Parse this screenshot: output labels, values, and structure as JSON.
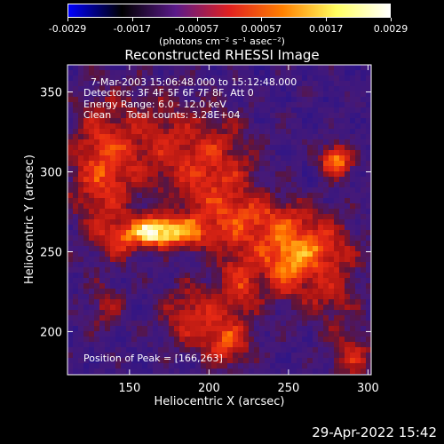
{
  "chart_data": {
    "type": "heatmap",
    "title": "Reconstructed RHESSI Image",
    "xlabel": "Heliocentric X (arcsec)",
    "ylabel": "Heliocentric Y (arcsec)",
    "xlim": [
      111,
      302
    ],
    "ylim": [
      173,
      367
    ],
    "x_ticks": [
      "150",
      "200",
      "250",
      "300"
    ],
    "x_tick_values": [
      150,
      200,
      250,
      300
    ],
    "y_ticks": [
      "200",
      "250",
      "300",
      "350"
    ],
    "y_tick_values": [
      200,
      250,
      300,
      350
    ],
    "colorbar": {
      "ticks": [
        "-0.0029",
        "-0.0017",
        "-0.00057",
        "0.00057",
        "0.0017",
        "0.0029"
      ],
      "units": "(photons cm⁻² s⁻¹ asec⁻²)",
      "range": [
        -0.0029,
        0.0029
      ],
      "colormap": [
        "#0000ff",
        "#000000",
        "#5a1a8a",
        "#e02020",
        "#ff8000",
        "#ffff60",
        "#ffffff"
      ]
    },
    "annotations": {
      "time_range": "7-Mar-2003 15:06:48.000 to 15:12:48.000",
      "detectors": "Detectors: 3F 4F 5F 6F 7F 8F, Att 0",
      "energy": "Energy Range: 6.0 - 12.0 keV",
      "method": "Clean     Total counts: 3.28E+04",
      "peak": "Position of Peak = [166,263]"
    },
    "peak_position": [
      166,
      263
    ],
    "sources": [
      {
        "x": 166,
        "y": 263,
        "sx": 9,
        "sy": 6,
        "amp": 1.0
      },
      {
        "x": 184,
        "y": 262,
        "sx": 12,
        "sy": 7,
        "amp": 0.55
      },
      {
        "x": 145,
        "y": 258,
        "sx": 10,
        "sy": 8,
        "amp": 0.45
      },
      {
        "x": 280,
        "y": 307,
        "sx": 7,
        "sy": 7,
        "amp": 0.75
      },
      {
        "x": 132,
        "y": 300,
        "sx": 14,
        "sy": 30,
        "amp": 0.5
      },
      {
        "x": 168,
        "y": 318,
        "sx": 22,
        "sy": 22,
        "amp": 0.35
      },
      {
        "x": 205,
        "y": 295,
        "sx": 18,
        "sy": 25,
        "amp": 0.45
      },
      {
        "x": 240,
        "y": 270,
        "sx": 25,
        "sy": 10,
        "amp": 0.45
      },
      {
        "x": 262,
        "y": 252,
        "sx": 20,
        "sy": 10,
        "amp": 0.5
      },
      {
        "x": 248,
        "y": 238,
        "sx": 10,
        "sy": 12,
        "amp": 0.5
      },
      {
        "x": 220,
        "y": 232,
        "sx": 10,
        "sy": 18,
        "amp": 0.45
      },
      {
        "x": 190,
        "y": 210,
        "sx": 14,
        "sy": 14,
        "amp": 0.45
      },
      {
        "x": 212,
        "y": 192,
        "sx": 10,
        "sy": 10,
        "amp": 0.5
      },
      {
        "x": 275,
        "y": 225,
        "sx": 14,
        "sy": 16,
        "amp": 0.35
      },
      {
        "x": 290,
        "y": 185,
        "sx": 10,
        "sy": 10,
        "amp": 0.4
      },
      {
        "x": 135,
        "y": 215,
        "sx": 8,
        "sy": 10,
        "amp": 0.3
      }
    ]
  },
  "timestamp": "29-Apr-2022 15:42"
}
